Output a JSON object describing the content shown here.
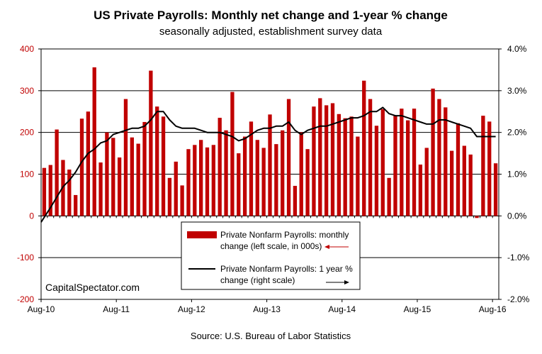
{
  "chart_data": {
    "type": "bar",
    "title": "US Private Payrolls: Monthly net change and 1-year % change",
    "subtitle": "seasonally adjusted, establishment survey data",
    "source": "Source: U.S. Bureau of Labor Statistics",
    "watermark": "CapitalSpectator.com",
    "x_tick_labels": [
      "Aug-10",
      "Aug-11",
      "Aug-12",
      "Aug-13",
      "Aug-14",
      "Aug-15",
      "Aug-16"
    ],
    "y_left": {
      "ylim": [
        -200,
        400
      ],
      "ticks": [
        "400",
        "300",
        "200",
        "100",
        "0",
        "-100",
        "-200"
      ],
      "color": "#c00000"
    },
    "y_right": {
      "ylim": [
        -2.0,
        4.0
      ],
      "ticks": [
        "4.0%",
        "3.0%",
        "2.0%",
        "1.0%",
        "0.0%",
        "-1.0%",
        "-2.0%"
      ]
    },
    "grid": true,
    "legend_position": "bottom-center",
    "series": [
      {
        "name": "Private Nonfarm Payrolls: monthly change (left scale, in 000s)",
        "name_lines": [
          "Private Nonfarm Payrolls: monthly",
          "change (left scale, in 000s)"
        ],
        "type": "bar",
        "color": "#c00000",
        "values": [
          115,
          122,
          207,
          134,
          111,
          50,
          233,
          250,
          356,
          128,
          200,
          187,
          140,
          280,
          188,
          173,
          225,
          348,
          262,
          238,
          91,
          130,
          73,
          160,
          170,
          182,
          164,
          170,
          235,
          205,
          297,
          150,
          190,
          226,
          182,
          163,
          243,
          172,
          205,
          280,
          72,
          200,
          160,
          262,
          282,
          265,
          270,
          244,
          234,
          238,
          190,
          324,
          280,
          216,
          256,
          91,
          240,
          257,
          229,
          257,
          123,
          163,
          305,
          280,
          260,
          156,
          222,
          168,
          147,
          -5,
          240,
          226,
          126
        ]
      },
      {
        "name": "Private Nonfarm Payrolls: 1 year % change (right scale)",
        "name_lines": [
          "Private Nonfarm Payrolls:  1 year %",
          "change (right scale)"
        ],
        "type": "line",
        "color": "#000000",
        "values": [
          -0.15,
          0.2,
          0.45,
          0.7,
          0.85,
          1.05,
          1.3,
          1.5,
          1.6,
          1.75,
          1.8,
          1.95,
          2.0,
          2.05,
          2.1,
          2.1,
          2.15,
          2.3,
          2.5,
          2.5,
          2.3,
          2.15,
          2.1,
          2.1,
          2.1,
          2.05,
          2.0,
          2.0,
          2.0,
          1.95,
          1.9,
          1.8,
          1.85,
          1.95,
          2.05,
          2.1,
          2.1,
          2.15,
          2.15,
          2.25,
          2.05,
          1.95,
          2.05,
          2.1,
          2.15,
          2.15,
          2.2,
          2.25,
          2.3,
          2.35,
          2.35,
          2.4,
          2.5,
          2.5,
          2.6,
          2.45,
          2.4,
          2.4,
          2.35,
          2.3,
          2.25,
          2.2,
          2.2,
          2.3,
          2.3,
          2.25,
          2.2,
          2.15,
          2.1,
          1.9,
          1.9,
          1.9,
          1.9
        ]
      }
    ]
  }
}
